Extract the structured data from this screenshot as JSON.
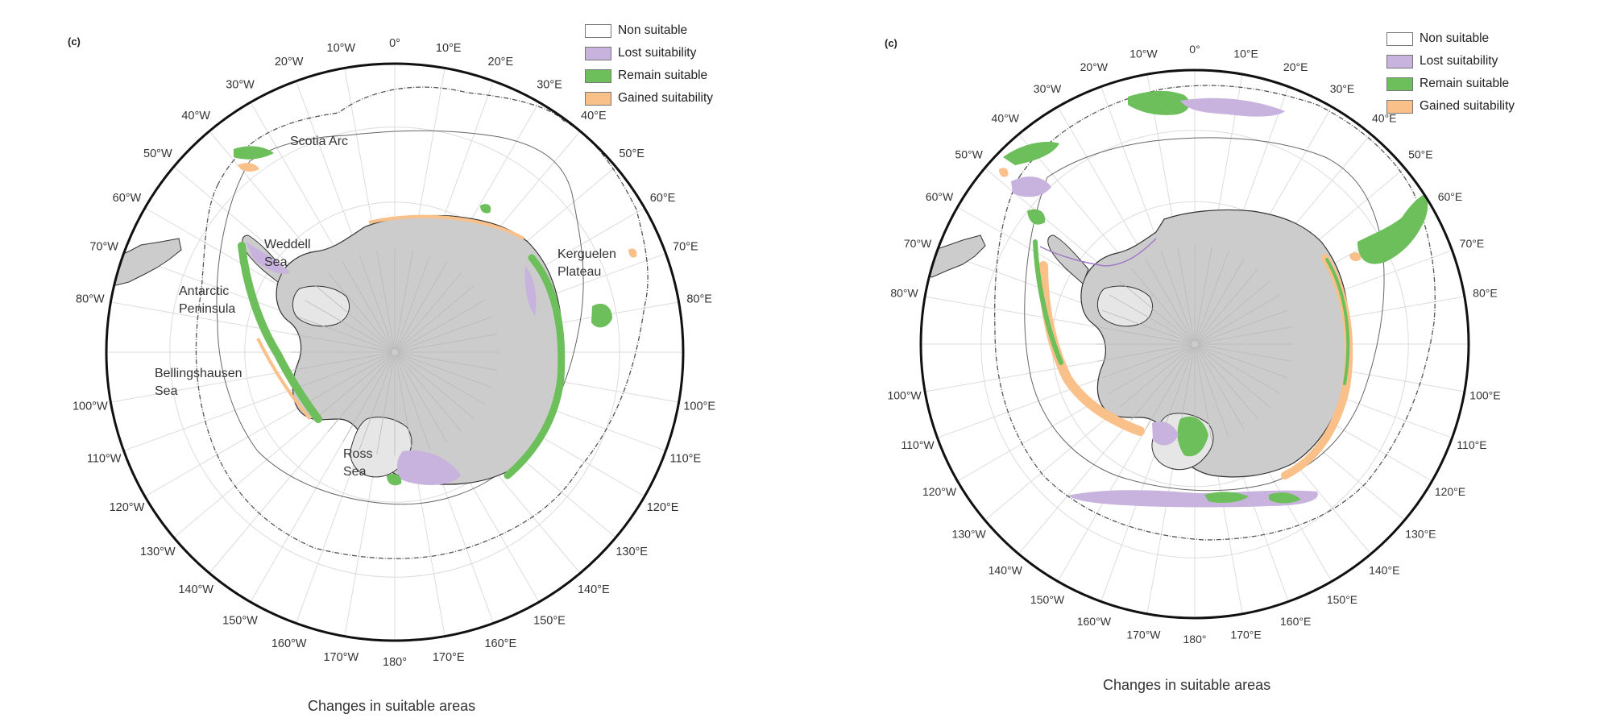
{
  "colors": {
    "non_suitable": "#ffffff",
    "lost_suitability": "#c7b3de",
    "remain_suitable": "#6dbf5c",
    "gained_suitability": "#f9c08a",
    "antarctica_land": "#cccccc",
    "ice_shelf": "#e6e6e6",
    "front_line": "#555555"
  },
  "legend": [
    {
      "key": "non_suitable",
      "label": "Non suitable"
    },
    {
      "key": "lost_suitability",
      "label": "Lost suitability"
    },
    {
      "key": "remain_suitable",
      "label": "Remain suitable"
    },
    {
      "key": "gained_suitability",
      "label": "Gained suitability"
    }
  ],
  "panels": [
    {
      "letter": "(c)",
      "caption": "Changes in suitable areas",
      "place_labels": {
        "scotia_arc": "Scotia Arc",
        "weddell": [
          "Weddell",
          "Sea"
        ],
        "kerguelen": [
          "Kerguelen",
          "Plateau"
        ],
        "antarctic_peninsula": [
          "Antarctic",
          "Peninsula"
        ],
        "bellingshausen": [
          "Bellingshausen",
          "Sea"
        ],
        "ross": [
          "Ross",
          "Sea"
        ]
      }
    },
    {
      "letter": "(c)",
      "caption": "Changes in suitable areas"
    }
  ],
  "longitude_labels": [
    {
      "deg": 0,
      "text": "0°"
    },
    {
      "deg": 10,
      "text": "10°E"
    },
    {
      "deg": 20,
      "text": "20°E"
    },
    {
      "deg": 30,
      "text": "30°E"
    },
    {
      "deg": 40,
      "text": "40°E"
    },
    {
      "deg": 50,
      "text": "50°E"
    },
    {
      "deg": 60,
      "text": "60°E"
    },
    {
      "deg": 70,
      "text": "70°E"
    },
    {
      "deg": 80,
      "text": "80°E"
    },
    {
      "deg": 100,
      "text": "100°E"
    },
    {
      "deg": 110,
      "text": "110°E"
    },
    {
      "deg": 120,
      "text": "120°E"
    },
    {
      "deg": 130,
      "text": "130°E"
    },
    {
      "deg": 140,
      "text": "140°E"
    },
    {
      "deg": 150,
      "text": "150°E"
    },
    {
      "deg": 160,
      "text": "160°E"
    },
    {
      "deg": 170,
      "text": "170°E"
    },
    {
      "deg": 180,
      "text": "180°"
    },
    {
      "deg": -170,
      "text": "170°W"
    },
    {
      "deg": -160,
      "text": "160°W"
    },
    {
      "deg": -150,
      "text": "150°W"
    },
    {
      "deg": -140,
      "text": "140°W"
    },
    {
      "deg": -130,
      "text": "130°W"
    },
    {
      "deg": -120,
      "text": "120°W"
    },
    {
      "deg": -110,
      "text": "110°W"
    },
    {
      "deg": -100,
      "text": "100°W"
    },
    {
      "deg": -80,
      "text": "80°W"
    },
    {
      "deg": -70,
      "text": "70°W"
    },
    {
      "deg": -60,
      "text": "60°W"
    },
    {
      "deg": -50,
      "text": "50°W"
    },
    {
      "deg": -40,
      "text": "40°W"
    },
    {
      "deg": -30,
      "text": "30°W"
    },
    {
      "deg": -20,
      "text": "20°W"
    },
    {
      "deg": -10,
      "text": "10°W"
    }
  ]
}
